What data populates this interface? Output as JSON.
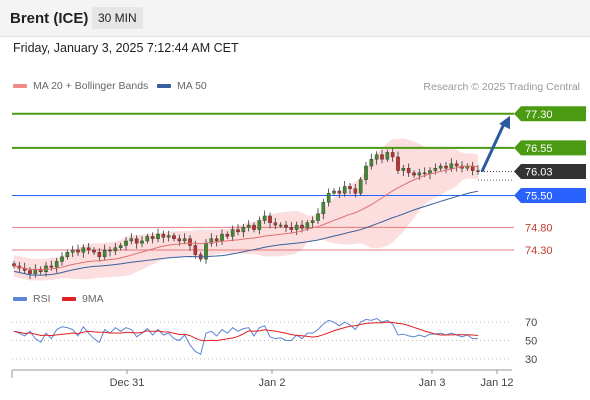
{
  "header": {
    "instrument": "Brent (ICE)",
    "interval": "30 MIN"
  },
  "datetime": "Friday, January 3, 2025 7:12:44 AM CET",
  "legend": {
    "ma20": "MA 20 + Bollinger Bands",
    "ma50": "MA 50",
    "rsi": "RSI",
    "ma9": "9MA"
  },
  "copyright": "Research © 2025 Trading Central",
  "colors": {
    "green": "#4a9a12",
    "blue": "#2962ff",
    "red": "#e06060",
    "ma20": "#e07070",
    "ma50": "#3a5f9e",
    "bollinger": "#fbd8d8",
    "arrow": "#2a5aa0",
    "up_candle": "#3f8a2e",
    "down_candle": "#c03030",
    "current_tag": "#333333"
  },
  "chart_data": {
    "type": "candlestick",
    "price_scale": {
      "min": 73.75,
      "max": 77.45
    },
    "x_labels": [
      {
        "label": "Dec 31",
        "pos": 0.23
      },
      {
        "label": "Jan 2",
        "pos": 0.52
      },
      {
        "label": "Jan 3",
        "pos": 0.84
      },
      {
        "label": "Jan 12",
        "pos": 0.97
      }
    ],
    "levels": [
      {
        "value": 77.3,
        "label": "77.30",
        "kind": "resistance"
      },
      {
        "value": 76.55,
        "label": "76.55",
        "kind": "resistance"
      },
      {
        "value": 76.03,
        "label": "76.03",
        "kind": "current"
      },
      {
        "value": 75.5,
        "label": "75.50",
        "kind": "pivot"
      },
      {
        "value": 74.8,
        "label": "74.80",
        "kind": "support"
      },
      {
        "value": 74.3,
        "label": "74.30",
        "kind": "support"
      }
    ],
    "close": [
      73.95,
      73.9,
      73.85,
      73.78,
      73.88,
      73.82,
      73.95,
      73.92,
      74.05,
      74.15,
      74.25,
      74.3,
      74.25,
      74.35,
      74.3,
      74.25,
      74.15,
      74.3,
      74.28,
      74.35,
      74.4,
      74.5,
      74.55,
      74.45,
      74.5,
      74.6,
      74.55,
      74.65,
      74.58,
      74.62,
      74.55,
      74.5,
      74.55,
      74.4,
      74.2,
      74.1,
      74.45,
      74.55,
      74.5,
      74.65,
      74.6,
      74.75,
      74.7,
      74.8,
      74.85,
      74.75,
      74.95,
      75.05,
      74.9,
      74.85,
      74.85,
      74.8,
      74.75,
      74.85,
      74.78,
      74.9,
      74.95,
      75.1,
      75.35,
      75.55,
      75.6,
      75.55,
      75.7,
      75.65,
      75.55,
      75.85,
      76.15,
      76.3,
      76.4,
      76.3,
      76.45,
      76.35,
      76.05,
      76.1,
      76.0,
      75.95,
      76.0,
      75.98,
      76.05,
      76.1,
      76.15,
      76.1,
      76.2,
      76.15,
      76.1,
      76.15,
      76.05,
      76.03
    ],
    "rsi_scale": {
      "min": 20,
      "max": 80
    },
    "rsi_levels": [
      70,
      50,
      30
    ],
    "rsi": [
      60,
      58,
      55,
      60,
      52,
      48,
      58,
      52,
      62,
      65,
      64,
      62,
      55,
      65,
      58,
      52,
      48,
      62,
      58,
      64,
      60,
      64,
      62,
      54,
      58,
      63,
      56,
      62,
      56,
      58,
      52,
      50,
      56,
      45,
      38,
      35,
      58,
      60,
      55,
      62,
      58,
      64,
      60,
      63,
      64,
      55,
      64,
      66,
      54,
      52,
      53,
      50,
      50,
      56,
      52,
      58,
      58,
      62,
      68,
      72,
      70,
      66,
      70,
      67,
      62,
      70,
      73,
      72,
      74,
      70,
      72,
      68,
      56,
      57,
      55,
      54,
      56,
      54,
      57,
      57,
      58,
      56,
      58,
      56,
      54,
      56,
      52,
      52
    ]
  }
}
